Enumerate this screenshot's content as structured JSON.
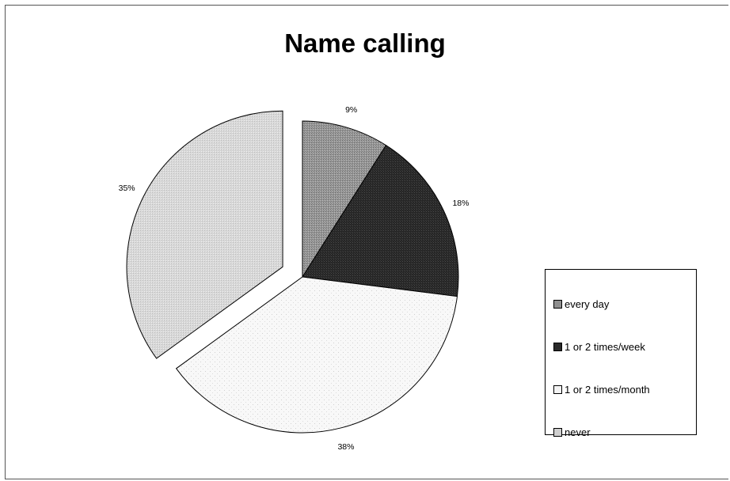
{
  "chart_data": {
    "type": "pie",
    "title": "Name calling",
    "categories": [
      "every day",
      "1 or 2 times/week",
      "1 or 2 times/month",
      "never"
    ],
    "values": [
      9,
      18,
      38,
      35
    ],
    "value_labels": [
      "9%",
      "18%",
      "38%",
      "35%"
    ],
    "exploded": [
      false,
      false,
      false,
      true
    ],
    "legend_position": "right",
    "colors": [
      "#8f8f8f",
      "#2b2b2b",
      "#f4f4f4",
      "#cfcfcf"
    ]
  }
}
